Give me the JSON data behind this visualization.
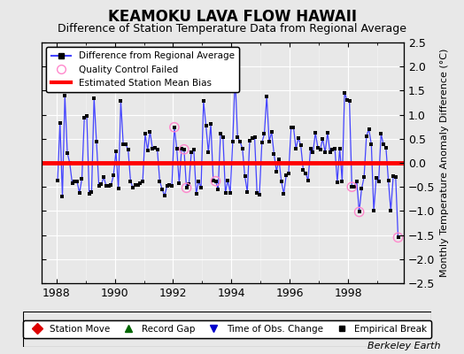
{
  "title": "KEAMOKU LAVA FLOW HAWAII",
  "subtitle": "Difference of Station Temperature Data from Regional Average",
  "ylabel": "Monthly Temperature Anomaly Difference (°C)",
  "bias": 0.0,
  "xlim": [
    1987.5,
    1999.9
  ],
  "ylim": [
    -2.5,
    2.5
  ],
  "xticks": [
    1988,
    1990,
    1992,
    1994,
    1996,
    1998
  ],
  "yticks": [
    -2.5,
    -2.0,
    -1.5,
    -1.0,
    -0.5,
    0.0,
    0.5,
    1.0,
    1.5,
    2.0,
    2.5
  ],
  "line_color": "#4444ff",
  "dot_color": "#000000",
  "bias_color": "#ff0000",
  "qc_color": "#ff88cc",
  "bg_color": "#e8e8e8",
  "title_fontsize": 12,
  "subtitle_fontsize": 9,
  "data": [
    [
      1988.042,
      -0.37
    ],
    [
      1988.125,
      0.83
    ],
    [
      1988.208,
      -0.7
    ],
    [
      1988.292,
      1.4
    ],
    [
      1988.375,
      0.21
    ],
    [
      1988.458,
      0.0
    ],
    [
      1988.542,
      -0.42
    ],
    [
      1988.625,
      -0.38
    ],
    [
      1988.708,
      -0.38
    ],
    [
      1988.792,
      -0.63
    ],
    [
      1988.875,
      -0.33
    ],
    [
      1988.958,
      0.93
    ],
    [
      1989.042,
      0.97
    ],
    [
      1989.125,
      -0.64
    ],
    [
      1989.208,
      -0.6
    ],
    [
      1989.292,
      1.35
    ],
    [
      1989.375,
      0.44
    ],
    [
      1989.458,
      -0.48
    ],
    [
      1989.542,
      -0.44
    ],
    [
      1989.625,
      -0.3
    ],
    [
      1989.708,
      -0.48
    ],
    [
      1989.792,
      -0.48
    ],
    [
      1989.875,
      -0.46
    ],
    [
      1989.958,
      -0.26
    ],
    [
      1990.042,
      0.24
    ],
    [
      1990.125,
      -0.54
    ],
    [
      1990.208,
      1.28
    ],
    [
      1990.292,
      0.38
    ],
    [
      1990.375,
      0.38
    ],
    [
      1990.458,
      0.28
    ],
    [
      1990.542,
      -0.38
    ],
    [
      1990.625,
      -0.52
    ],
    [
      1990.708,
      -0.46
    ],
    [
      1990.792,
      -0.46
    ],
    [
      1990.875,
      -0.43
    ],
    [
      1990.958,
      -0.38
    ],
    [
      1991.042,
      0.6
    ],
    [
      1991.125,
      0.26
    ],
    [
      1991.208,
      0.65
    ],
    [
      1991.292,
      0.3
    ],
    [
      1991.375,
      0.32
    ],
    [
      1991.458,
      0.28
    ],
    [
      1991.542,
      -0.38
    ],
    [
      1991.625,
      -0.55
    ],
    [
      1991.708,
      -0.68
    ],
    [
      1991.792,
      -0.48
    ],
    [
      1991.875,
      -0.46
    ],
    [
      1991.958,
      -0.48
    ],
    [
      1992.042,
      0.74
    ],
    [
      1992.125,
      0.3
    ],
    [
      1992.208,
      -0.42
    ],
    [
      1992.292,
      0.3
    ],
    [
      1992.375,
      0.28
    ],
    [
      1992.458,
      -0.52
    ],
    [
      1992.542,
      -0.44
    ],
    [
      1992.625,
      0.22
    ],
    [
      1992.708,
      0.28
    ],
    [
      1992.792,
      -0.64
    ],
    [
      1992.875,
      -0.38
    ],
    [
      1992.958,
      -0.52
    ],
    [
      1993.042,
      1.28
    ],
    [
      1993.125,
      0.78
    ],
    [
      1993.208,
      0.22
    ],
    [
      1993.292,
      0.8
    ],
    [
      1993.375,
      -0.36
    ],
    [
      1993.458,
      -0.38
    ],
    [
      1993.542,
      -0.55
    ],
    [
      1993.625,
      0.6
    ],
    [
      1993.708,
      0.54
    ],
    [
      1993.792,
      -0.62
    ],
    [
      1993.875,
      -0.36
    ],
    [
      1993.958,
      -0.62
    ],
    [
      1994.042,
      0.44
    ],
    [
      1994.125,
      1.8
    ],
    [
      1994.208,
      0.54
    ],
    [
      1994.292,
      0.44
    ],
    [
      1994.375,
      0.3
    ],
    [
      1994.458,
      -0.28
    ],
    [
      1994.542,
      -0.6
    ],
    [
      1994.625,
      0.46
    ],
    [
      1994.708,
      0.52
    ],
    [
      1994.792,
      0.54
    ],
    [
      1994.875,
      -0.62
    ],
    [
      1994.958,
      -0.66
    ],
    [
      1995.042,
      0.42
    ],
    [
      1995.125,
      0.6
    ],
    [
      1995.208,
      1.38
    ],
    [
      1995.292,
      0.44
    ],
    [
      1995.375,
      0.64
    ],
    [
      1995.458,
      0.18
    ],
    [
      1995.542,
      -0.18
    ],
    [
      1995.625,
      0.08
    ],
    [
      1995.708,
      -0.38
    ],
    [
      1995.792,
      -0.64
    ],
    [
      1995.875,
      -0.26
    ],
    [
      1995.958,
      -0.22
    ],
    [
      1996.042,
      0.74
    ],
    [
      1996.125,
      0.74
    ],
    [
      1996.208,
      0.3
    ],
    [
      1996.292,
      0.52
    ],
    [
      1996.375,
      0.36
    ],
    [
      1996.458,
      -0.14
    ],
    [
      1996.542,
      -0.22
    ],
    [
      1996.625,
      -0.36
    ],
    [
      1996.708,
      0.3
    ],
    [
      1996.792,
      0.22
    ],
    [
      1996.875,
      0.62
    ],
    [
      1996.958,
      0.32
    ],
    [
      1997.042,
      0.28
    ],
    [
      1997.125,
      0.5
    ],
    [
      1997.208,
      0.22
    ],
    [
      1997.292,
      0.62
    ],
    [
      1997.375,
      0.22
    ],
    [
      1997.458,
      0.28
    ],
    [
      1997.542,
      0.3
    ],
    [
      1997.625,
      -0.4
    ],
    [
      1997.708,
      0.3
    ],
    [
      1997.792,
      -0.38
    ],
    [
      1997.875,
      1.46
    ],
    [
      1997.958,
      1.3
    ],
    [
      1998.042,
      1.28
    ],
    [
      1998.125,
      -0.5
    ],
    [
      1998.208,
      -0.5
    ],
    [
      1998.292,
      -0.38
    ],
    [
      1998.375,
      -1.02
    ],
    [
      1998.458,
      -0.54
    ],
    [
      1998.542,
      -0.3
    ],
    [
      1998.625,
      0.56
    ],
    [
      1998.708,
      0.7
    ],
    [
      1998.792,
      0.38
    ],
    [
      1998.875,
      -1.0
    ],
    [
      1998.958,
      -0.32
    ],
    [
      1999.042,
      -0.38
    ],
    [
      1999.125,
      0.6
    ],
    [
      1999.208,
      0.38
    ],
    [
      1999.292,
      0.32
    ],
    [
      1999.375,
      -0.36
    ],
    [
      1999.458,
      -1.0
    ],
    [
      1999.542,
      -0.28
    ],
    [
      1999.625,
      -0.3
    ],
    [
      1999.708,
      -1.55
    ]
  ],
  "qc_failed_x": [
    1992.042,
    1992.375,
    1992.458,
    1993.458,
    1998.125,
    1998.375,
    1999.708
  ],
  "berkeley_earth_text": "Berkeley Earth"
}
